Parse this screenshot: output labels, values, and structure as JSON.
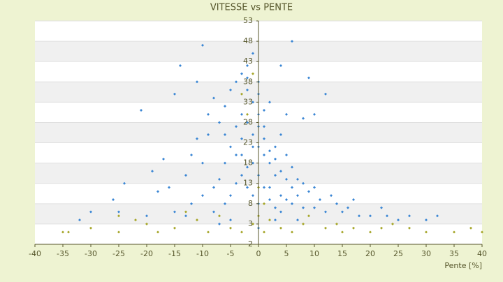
{
  "chart_data": {
    "type": "scatter",
    "title": "VITESSE vs PENTE",
    "x_label": "Pente [%]",
    "xlim": [
      -40,
      40
    ],
    "xticks": [
      -40,
      -35,
      -30,
      -25,
      -20,
      -15,
      -10,
      -5,
      0,
      5,
      10,
      15,
      20,
      25,
      30,
      35,
      40
    ],
    "ylim": [
      -2,
      53
    ],
    "yticks": [
      -2,
      3,
      8,
      13,
      18,
      23,
      28,
      33,
      38,
      43,
      48,
      53
    ],
    "grid": true,
    "series": [
      {
        "color": "#3a86d4",
        "x": [
          -1,
          0,
          1,
          2,
          3,
          -2,
          -3,
          0,
          1,
          -1,
          2,
          4,
          5,
          6,
          8,
          10,
          12,
          15,
          18,
          20,
          25,
          30,
          -4,
          -5,
          -6,
          -7,
          -8,
          -10,
          -12,
          -15,
          -20,
          -25,
          -30,
          -32,
          0,
          -1,
          1,
          -2,
          -3,
          0,
          1,
          2,
          3,
          4,
          0,
          -1,
          -2,
          -3,
          -4,
          -5,
          -6,
          -8,
          -10,
          -12,
          -9,
          -7,
          -6,
          -5,
          -4,
          -3,
          -2,
          -1,
          6,
          -10,
          4,
          9,
          12,
          -14,
          -21,
          -15,
          -11,
          -8,
          3,
          4,
          5,
          6,
          7,
          8,
          9,
          10,
          11,
          13,
          14,
          16,
          17,
          22,
          23,
          27,
          32,
          -16,
          -18,
          -13,
          -11,
          -9,
          -6,
          -4,
          -3,
          -2,
          -1,
          0,
          1,
          2,
          3,
          4,
          5,
          6,
          7,
          8,
          10,
          5,
          2,
          0,
          -2,
          -26,
          -24,
          -19,
          -17,
          -13,
          -7,
          -5,
          0,
          3,
          7
        ],
        "values": [
          25,
          22,
          20,
          18,
          15,
          28,
          24,
          30,
          27,
          18,
          12,
          10,
          9,
          8,
          7,
          7,
          6,
          6,
          5,
          5,
          4,
          4,
          20,
          22,
          18,
          14,
          12,
          10,
          8,
          6,
          5,
          6,
          6,
          4,
          35,
          33,
          31,
          36,
          30,
          15,
          12,
          9,
          7,
          6,
          8,
          10,
          12,
          15,
          13,
          10,
          8,
          6,
          18,
          20,
          25,
          28,
          32,
          36,
          38,
          40,
          42,
          45,
          48,
          47,
          42,
          39,
          35,
          42,
          31,
          35,
          38,
          34,
          22,
          25,
          20,
          17,
          14,
          13,
          11,
          12,
          9,
          10,
          8,
          7,
          9,
          7,
          5,
          5,
          5,
          12,
          11,
          15,
          24,
          30,
          25,
          27,
          20,
          17,
          22,
          27,
          24,
          21,
          19,
          16,
          14,
          12,
          10,
          29,
          30,
          30,
          33,
          38,
          39,
          9,
          13,
          16,
          19,
          5,
          3,
          4,
          2,
          4,
          4
        ]
      },
      {
        "color": "#a6a62a",
        "x": [
          -35,
          -34,
          -30,
          -25,
          -22,
          -20,
          -18,
          -15,
          -13,
          -11,
          -9,
          -7,
          -5,
          -3,
          -1,
          0,
          1,
          2,
          4,
          6,
          8,
          9,
          12,
          14,
          15,
          17,
          20,
          22,
          24,
          27,
          30,
          35,
          38,
          40,
          -2,
          -1,
          -3,
          0,
          1,
          -25
        ],
        "values": [
          1,
          1,
          2,
          1,
          4,
          3,
          1,
          2,
          6,
          4,
          1,
          5,
          2,
          1,
          3,
          5,
          1,
          4,
          2,
          1,
          3,
          5,
          2,
          3,
          1,
          2,
          1,
          2,
          3,
          2,
          1,
          1,
          2,
          1,
          30,
          40,
          35,
          12,
          8,
          5
        ]
      }
    ]
  }
}
